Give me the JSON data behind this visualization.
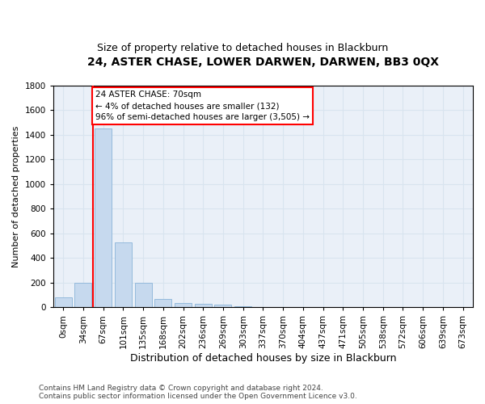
{
  "title": "24, ASTER CHASE, LOWER DARWEN, DARWEN, BB3 0QX",
  "subtitle": "Size of property relative to detached houses in Blackburn",
  "xlabel": "Distribution of detached houses by size in Blackburn",
  "ylabel": "Number of detached properties",
  "bar_color": "#c6d9ee",
  "bar_edge_color": "#8ab4d8",
  "annotation_text": "24 ASTER CHASE: 70sqm\n← 4% of detached houses are smaller (132)\n96% of semi-detached houses are larger (3,505) →",
  "annotation_box_color": "white",
  "annotation_box_edge": "red",
  "vline_x": 1.5,
  "vline_color": "red",
  "categories": [
    "0sqm",
    "34sqm",
    "67sqm",
    "101sqm",
    "135sqm",
    "168sqm",
    "202sqm",
    "236sqm",
    "269sqm",
    "303sqm",
    "337sqm",
    "370sqm",
    "404sqm",
    "437sqm",
    "471sqm",
    "505sqm",
    "538sqm",
    "572sqm",
    "606sqm",
    "639sqm",
    "673sqm"
  ],
  "values": [
    80,
    200,
    1450,
    530,
    200,
    65,
    35,
    28,
    20,
    10,
    5,
    2,
    1,
    0,
    0,
    0,
    0,
    0,
    0,
    0,
    0
  ],
  "ylim": [
    0,
    1800
  ],
  "yticks": [
    0,
    200,
    400,
    600,
    800,
    1000,
    1200,
    1400,
    1600,
    1800
  ],
  "grid_color": "#d8e4ef",
  "bg_color": "#eaf0f8",
  "footer": "Contains HM Land Registry data © Crown copyright and database right 2024.\nContains public sector information licensed under the Open Government Licence v3.0.",
  "title_fontsize": 10,
  "subtitle_fontsize": 9,
  "xlabel_fontsize": 9,
  "ylabel_fontsize": 8,
  "tick_fontsize": 7.5,
  "footer_fontsize": 6.5,
  "annot_fontsize": 7.5
}
